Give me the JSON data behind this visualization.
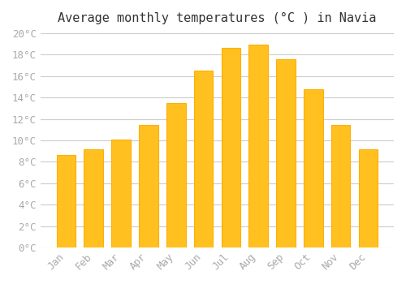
{
  "title": "Average monthly temperatures (°C ) in Navia",
  "months": [
    "Jan",
    "Feb",
    "Mar",
    "Apr",
    "May",
    "Jun",
    "Jul",
    "Aug",
    "Sep",
    "Oct",
    "Nov",
    "Dec"
  ],
  "values": [
    8.6,
    9.2,
    10.1,
    11.4,
    13.5,
    16.5,
    18.6,
    18.9,
    17.6,
    14.8,
    11.4,
    9.2
  ],
  "bar_color_face": "#FFC020",
  "bar_color_edge": "#FFB000",
  "ylim": [
    0,
    20
  ],
  "ytick_step": 2,
  "background_color": "#FFFFFF",
  "grid_color": "#CCCCCC",
  "title_fontsize": 11,
  "tick_fontsize": 9,
  "tick_label_color": "#AAAAAA",
  "font_family": "monospace"
}
